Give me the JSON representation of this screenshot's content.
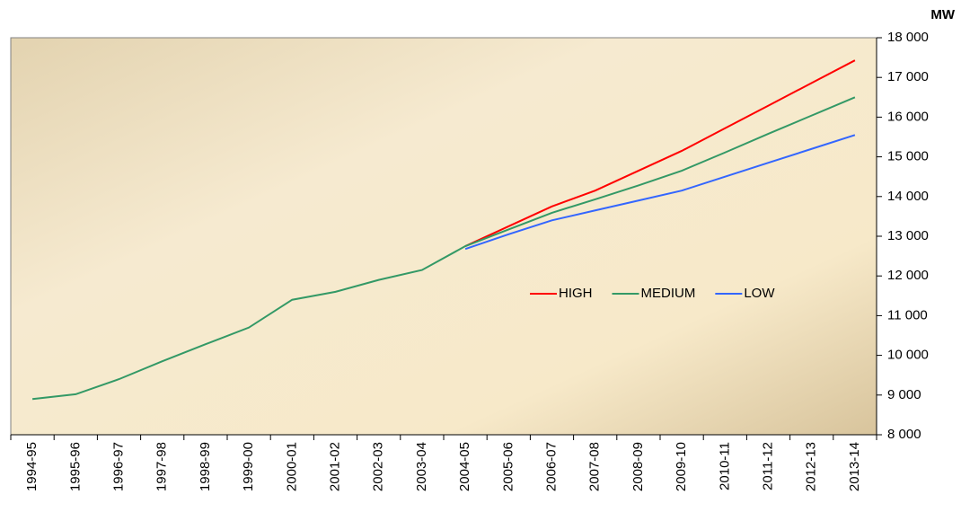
{
  "chart_data": {
    "type": "line",
    "y_axis_label": "MW",
    "categories": [
      "1994-95",
      "1995-96",
      "1996-97",
      "1997-98",
      "1998-99",
      "1999-00",
      "2000-01",
      "2001-02",
      "2002-03",
      "2003-04",
      "2004-05",
      "2005-06",
      "2006-07",
      "2007-08",
      "2008-09",
      "2009-10",
      "2010-11",
      "2011-12",
      "2012-13",
      "2013-14"
    ],
    "series": [
      {
        "name": "HIGH",
        "color": "#ff0000",
        "values": [
          null,
          null,
          null,
          null,
          null,
          null,
          null,
          null,
          null,
          null,
          12750,
          13250,
          13750,
          14150,
          14650,
          15150,
          15720,
          16290,
          16860,
          17430
        ]
      },
      {
        "name": "MEDIUM",
        "color": "#339966",
        "values": [
          8900,
          9020,
          9400,
          9850,
          10280,
          10700,
          11400,
          11600,
          11900,
          12150,
          12750,
          13170,
          13590,
          13930,
          14280,
          14650,
          15110,
          15580,
          16040,
          16500
        ]
      },
      {
        "name": "LOW",
        "color": "#3366ff",
        "values": [
          null,
          null,
          null,
          null,
          null,
          null,
          null,
          null,
          null,
          null,
          12680,
          13050,
          13400,
          13650,
          13900,
          14150,
          14500,
          14850,
          15200,
          15550
        ]
      }
    ],
    "ylim": [
      8000,
      18000
    ],
    "yticks": [
      {
        "value": 8000,
        "label": "8 000"
      },
      {
        "value": 9000,
        "label": "9 000"
      },
      {
        "value": 10000,
        "label": "10 000"
      },
      {
        "value": 11000,
        "label": "11 000"
      },
      {
        "value": 12000,
        "label": "12 000"
      },
      {
        "value": 13000,
        "label": "13 000"
      },
      {
        "value": 14000,
        "label": "14 000"
      },
      {
        "value": 15000,
        "label": "15 000"
      },
      {
        "value": 16000,
        "label": "16 000"
      },
      {
        "value": 17000,
        "label": "17 000"
      },
      {
        "value": 18000,
        "label": "18 000"
      }
    ],
    "y_axis_side": "right",
    "legend": "center-right"
  }
}
